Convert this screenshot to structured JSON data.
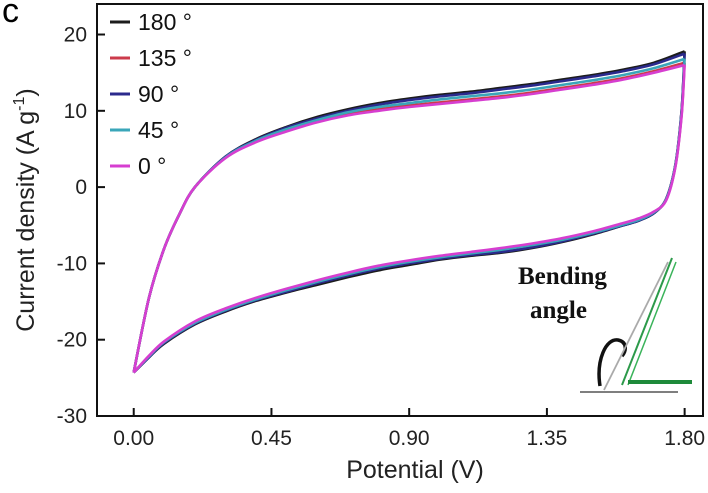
{
  "panel_letter": "c",
  "chart_data": {
    "type": "line",
    "title": "",
    "xlabel": "Potential (V)",
    "ylabel": "Current density (A g",
    "ylabel_sup": "-1",
    "ylabel_close": ")",
    "xlim": [
      -0.12,
      1.86
    ],
    "ylim": [
      -30,
      24
    ],
    "xticks": [
      0.0,
      0.45,
      0.9,
      1.35,
      1.8
    ],
    "xtick_labels": [
      "0.00",
      "0.45",
      "0.90",
      "1.35",
      "1.80"
    ],
    "yticks": [
      -30,
      -20,
      -10,
      0,
      10,
      20
    ],
    "ytick_labels": [
      "-30",
      "-20",
      "-10",
      "0",
      "10",
      "20"
    ],
    "grid": false,
    "legend_position": "top-left",
    "series": [
      {
        "name": "180 °",
        "color": "#1c1c1c",
        "upper": [
          [
            0.0,
            -24.3
          ],
          [
            0.05,
            -14.5
          ],
          [
            0.1,
            -8.0
          ],
          [
            0.15,
            -3.5
          ],
          [
            0.2,
            0.0
          ],
          [
            0.3,
            4.0
          ],
          [
            0.4,
            6.3
          ],
          [
            0.5,
            7.9
          ],
          [
            0.6,
            9.2
          ],
          [
            0.7,
            10.2
          ],
          [
            0.8,
            11.0
          ],
          [
            0.9,
            11.6
          ],
          [
            1.0,
            12.1
          ],
          [
            1.1,
            12.5
          ],
          [
            1.2,
            13.0
          ],
          [
            1.3,
            13.5
          ],
          [
            1.4,
            14.1
          ],
          [
            1.5,
            14.7
          ],
          [
            1.6,
            15.4
          ],
          [
            1.7,
            16.3
          ],
          [
            1.8,
            17.8
          ]
        ],
        "lower": [
          [
            1.8,
            17.8
          ],
          [
            1.79,
            10.0
          ],
          [
            1.77,
            3.0
          ],
          [
            1.74,
            -1.5
          ],
          [
            1.7,
            -3.4
          ],
          [
            1.65,
            -4.4
          ],
          [
            1.6,
            -5.0
          ],
          [
            1.5,
            -6.2
          ],
          [
            1.4,
            -7.2
          ],
          [
            1.3,
            -8.0
          ],
          [
            1.2,
            -8.6
          ],
          [
            1.1,
            -9.0
          ],
          [
            1.0,
            -9.5
          ],
          [
            0.9,
            -10.2
          ],
          [
            0.8,
            -10.9
          ],
          [
            0.7,
            -11.8
          ],
          [
            0.6,
            -12.8
          ],
          [
            0.5,
            -13.8
          ],
          [
            0.4,
            -14.9
          ],
          [
            0.3,
            -16.3
          ],
          [
            0.2,
            -18.0
          ],
          [
            0.1,
            -20.5
          ],
          [
            0.05,
            -22.3
          ],
          [
            0.0,
            -24.3
          ]
        ]
      },
      {
        "name": "135 °",
        "color": "#cc3b4b",
        "upper": [
          [
            0.0,
            -24.3
          ],
          [
            0.05,
            -14.5
          ],
          [
            0.1,
            -8.0
          ],
          [
            0.15,
            -3.5
          ],
          [
            0.2,
            0.0
          ],
          [
            0.3,
            3.9
          ],
          [
            0.4,
            6.0
          ],
          [
            0.5,
            7.4
          ],
          [
            0.6,
            8.6
          ],
          [
            0.7,
            9.5
          ],
          [
            0.8,
            10.2
          ],
          [
            0.9,
            10.7
          ],
          [
            1.0,
            11.1
          ],
          [
            1.1,
            11.5
          ],
          [
            1.2,
            11.9
          ],
          [
            1.3,
            12.4
          ],
          [
            1.4,
            13.0
          ],
          [
            1.5,
            13.6
          ],
          [
            1.6,
            14.3
          ],
          [
            1.7,
            15.2
          ],
          [
            1.8,
            16.3
          ]
        ],
        "lower": [
          [
            1.8,
            16.3
          ],
          [
            1.79,
            9.5
          ],
          [
            1.77,
            2.8
          ],
          [
            1.74,
            -1.6
          ],
          [
            1.7,
            -3.3
          ],
          [
            1.65,
            -4.2
          ],
          [
            1.6,
            -4.8
          ],
          [
            1.5,
            -5.9
          ],
          [
            1.4,
            -6.8
          ],
          [
            1.3,
            -7.5
          ],
          [
            1.2,
            -8.1
          ],
          [
            1.1,
            -8.6
          ],
          [
            1.0,
            -9.1
          ],
          [
            0.9,
            -9.7
          ],
          [
            0.8,
            -10.4
          ],
          [
            0.7,
            -11.3
          ],
          [
            0.6,
            -12.3
          ],
          [
            0.5,
            -13.4
          ],
          [
            0.4,
            -14.6
          ],
          [
            0.3,
            -16.0
          ],
          [
            0.2,
            -17.7
          ],
          [
            0.1,
            -20.3
          ],
          [
            0.05,
            -22.2
          ],
          [
            0.0,
            -24.3
          ]
        ]
      },
      {
        "name": "90 °",
        "color": "#2b2a8c",
        "upper": [
          [
            0.0,
            -24.3
          ],
          [
            0.05,
            -14.5
          ],
          [
            0.1,
            -8.0
          ],
          [
            0.15,
            -3.5
          ],
          [
            0.2,
            0.0
          ],
          [
            0.3,
            4.0
          ],
          [
            0.4,
            6.2
          ],
          [
            0.5,
            7.8
          ],
          [
            0.6,
            9.0
          ],
          [
            0.7,
            10.0
          ],
          [
            0.8,
            10.8
          ],
          [
            0.9,
            11.4
          ],
          [
            1.0,
            11.9
          ],
          [
            1.1,
            12.3
          ],
          [
            1.2,
            12.8
          ],
          [
            1.3,
            13.3
          ],
          [
            1.4,
            13.9
          ],
          [
            1.5,
            14.5
          ],
          [
            1.6,
            15.2
          ],
          [
            1.7,
            16.1
          ],
          [
            1.8,
            17.5
          ]
        ],
        "lower": [
          [
            1.8,
            17.5
          ],
          [
            1.79,
            10.0
          ],
          [
            1.77,
            3.0
          ],
          [
            1.74,
            -1.5
          ],
          [
            1.7,
            -3.4
          ],
          [
            1.65,
            -4.4
          ],
          [
            1.6,
            -5.0
          ],
          [
            1.5,
            -6.1
          ],
          [
            1.4,
            -7.1
          ],
          [
            1.3,
            -7.9
          ],
          [
            1.2,
            -8.5
          ],
          [
            1.1,
            -8.9
          ],
          [
            1.0,
            -9.4
          ],
          [
            0.9,
            -10.0
          ],
          [
            0.8,
            -10.7
          ],
          [
            0.7,
            -11.6
          ],
          [
            0.6,
            -12.6
          ],
          [
            0.5,
            -13.7
          ],
          [
            0.4,
            -14.8
          ],
          [
            0.3,
            -16.2
          ],
          [
            0.2,
            -17.9
          ],
          [
            0.1,
            -20.4
          ],
          [
            0.05,
            -22.3
          ],
          [
            0.0,
            -24.3
          ]
        ]
      },
      {
        "name": "45 °",
        "color": "#3aa6b9",
        "upper": [
          [
            0.0,
            -24.3
          ],
          [
            0.05,
            -14.5
          ],
          [
            0.1,
            -8.0
          ],
          [
            0.15,
            -3.5
          ],
          [
            0.2,
            0.0
          ],
          [
            0.3,
            3.9
          ],
          [
            0.4,
            6.1
          ],
          [
            0.5,
            7.6
          ],
          [
            0.6,
            8.8
          ],
          [
            0.7,
            9.8
          ],
          [
            0.8,
            10.5
          ],
          [
            0.9,
            11.0
          ],
          [
            1.0,
            11.5
          ],
          [
            1.1,
            11.9
          ],
          [
            1.2,
            12.3
          ],
          [
            1.3,
            12.8
          ],
          [
            1.4,
            13.4
          ],
          [
            1.5,
            14.0
          ],
          [
            1.6,
            14.7
          ],
          [
            1.7,
            15.6
          ],
          [
            1.8,
            16.8
          ]
        ],
        "lower": [
          [
            1.8,
            16.8
          ],
          [
            1.79,
            9.7
          ],
          [
            1.77,
            2.9
          ],
          [
            1.74,
            -1.6
          ],
          [
            1.7,
            -3.3
          ],
          [
            1.65,
            -4.3
          ],
          [
            1.6,
            -4.9
          ],
          [
            1.5,
            -6.0
          ],
          [
            1.4,
            -6.9
          ],
          [
            1.3,
            -7.6
          ],
          [
            1.2,
            -8.2
          ],
          [
            1.1,
            -8.7
          ],
          [
            1.0,
            -9.2
          ],
          [
            0.9,
            -9.8
          ],
          [
            0.8,
            -10.5
          ],
          [
            0.7,
            -11.4
          ],
          [
            0.6,
            -12.4
          ],
          [
            0.5,
            -13.5
          ],
          [
            0.4,
            -14.7
          ],
          [
            0.3,
            -16.1
          ],
          [
            0.2,
            -17.8
          ],
          [
            0.1,
            -20.3
          ],
          [
            0.05,
            -22.2
          ],
          [
            0.0,
            -24.3
          ]
        ]
      },
      {
        "name": "0 °",
        "color": "#d63ed0",
        "upper": [
          [
            0.0,
            -24.3
          ],
          [
            0.05,
            -14.5
          ],
          [
            0.1,
            -8.0
          ],
          [
            0.15,
            -3.5
          ],
          [
            0.2,
            0.0
          ],
          [
            0.3,
            3.8
          ],
          [
            0.4,
            5.9
          ],
          [
            0.5,
            7.3
          ],
          [
            0.6,
            8.5
          ],
          [
            0.7,
            9.4
          ],
          [
            0.8,
            10.0
          ],
          [
            0.9,
            10.5
          ],
          [
            1.0,
            10.9
          ],
          [
            1.1,
            11.3
          ],
          [
            1.2,
            11.7
          ],
          [
            1.3,
            12.2
          ],
          [
            1.4,
            12.8
          ],
          [
            1.5,
            13.4
          ],
          [
            1.6,
            14.1
          ],
          [
            1.7,
            15.0
          ],
          [
            1.8,
            16.0
          ]
        ],
        "lower": [
          [
            1.8,
            16.0
          ],
          [
            1.79,
            9.3
          ],
          [
            1.77,
            2.7
          ],
          [
            1.74,
            -1.7
          ],
          [
            1.7,
            -3.2
          ],
          [
            1.65,
            -4.1
          ],
          [
            1.6,
            -4.7
          ],
          [
            1.5,
            -5.8
          ],
          [
            1.4,
            -6.7
          ],
          [
            1.3,
            -7.4
          ],
          [
            1.2,
            -8.0
          ],
          [
            1.1,
            -8.5
          ],
          [
            1.0,
            -9.0
          ],
          [
            0.9,
            -9.6
          ],
          [
            0.8,
            -10.3
          ],
          [
            0.7,
            -11.2
          ],
          [
            0.6,
            -12.2
          ],
          [
            0.5,
            -13.3
          ],
          [
            0.4,
            -14.5
          ],
          [
            0.3,
            -15.9
          ],
          [
            0.2,
            -17.6
          ],
          [
            0.1,
            -20.2
          ],
          [
            0.05,
            -22.1
          ],
          [
            0.0,
            -24.3
          ]
        ]
      }
    ],
    "annotations": {
      "inset_line1": "Bending",
      "inset_line2": "angle"
    }
  }
}
